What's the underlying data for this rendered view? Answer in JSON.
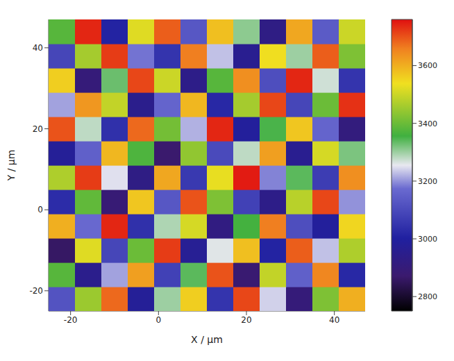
{
  "chart_data": {
    "type": "heatmap",
    "x_label": "X / μm",
    "y_label": "Y / μm",
    "x": [
      -22,
      -16,
      -10,
      -4,
      2,
      8,
      14,
      20,
      26,
      32,
      38,
      44
    ],
    "y": [
      -22,
      -16,
      -10,
      -4,
      2,
      8,
      14,
      20,
      26,
      32,
      38,
      44
    ],
    "xlim": [
      -25,
      47
    ],
    "ylim": [
      -25,
      47
    ],
    "xticks": [
      -20,
      0,
      20,
      40
    ],
    "yticks": [
      -20,
      0,
      20,
      40
    ],
    "cells": [
      [
        3120,
        3450,
        3680,
        2980,
        3300,
        3560,
        3050,
        3710,
        3240,
        2900,
        3420,
        3600
      ],
      [
        3380,
        2950,
        3210,
        3620,
        3080,
        3340,
        3700,
        2880,
        3490,
        3150,
        3650,
        3020
      ],
      [
        2860,
        3520,
        3090,
        3400,
        3720,
        2970,
        3260,
        3580,
        3010,
        3690,
        3230,
        3470
      ],
      [
        3600,
        3170,
        3740,
        3040,
        3290,
        3510,
        2920,
        3360,
        3660,
        3110,
        2990,
        3550
      ],
      [
        3030,
        3390,
        2890,
        3570,
        3130,
        3700,
        3420,
        3080,
        2940,
        3480,
        3710,
        3200
      ],
      [
        3470,
        3720,
        3250,
        2930,
        3610,
        3060,
        3530,
        3750,
        3190,
        3340,
        3070,
        3640
      ],
      [
        2980,
        3150,
        3590,
        3370,
        2870,
        3440,
        3100,
        3280,
        3620,
        2960,
        3510,
        3320
      ],
      [
        3700,
        3280,
        3040,
        3680,
        3410,
        3220,
        3740,
        2990,
        3350,
        3570,
        3160,
        2910
      ],
      [
        3210,
        3630,
        3490,
        2950,
        3160,
        3590,
        3020,
        3460,
        3710,
        3090,
        3400,
        3730
      ],
      [
        3560,
        2900,
        3330,
        3710,
        3500,
        2940,
        3380,
        3640,
        3110,
        3740,
        3270,
        3050
      ],
      [
        3090,
        3460,
        3720,
        3180,
        3050,
        3660,
        3230,
        2960,
        3540,
        3300,
        3690,
        3420
      ],
      [
        3380,
        3740,
        3010,
        3520,
        3690,
        3130,
        3580,
        3310,
        2930,
        3610,
        3140,
        3500
      ]
    ],
    "colorbar_lim": [
      2750,
      3760
    ],
    "colorbar_ticks": [
      2800,
      3000,
      3200,
      3400,
      3600
    ],
    "grid": false
  }
}
